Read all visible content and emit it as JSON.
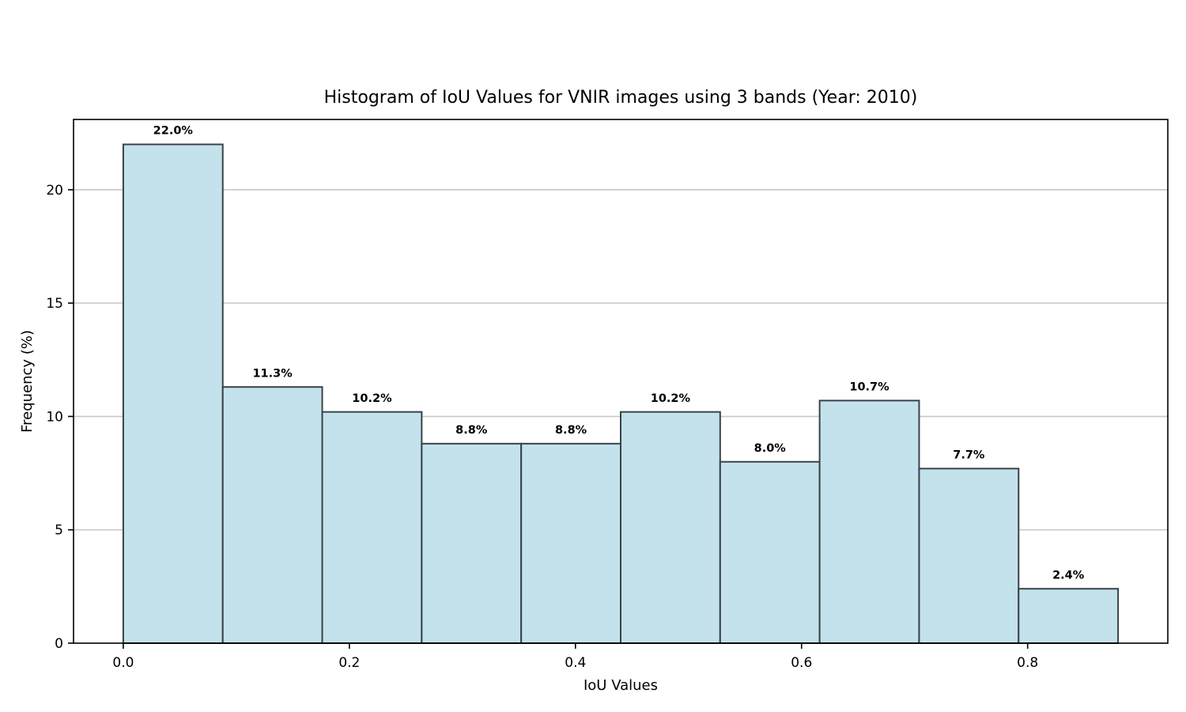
{
  "chart_data": {
    "type": "bar",
    "title": "Histogram of IoU Values for VNIR images using 3 bands (Year: 2010)",
    "xlabel": "IoU Values",
    "ylabel": "Frequency (%)",
    "bin_edges": [
      0.0,
      0.088,
      0.176,
      0.264,
      0.352,
      0.44,
      0.528,
      0.616,
      0.704,
      0.792,
      0.88
    ],
    "values": [
      22.0,
      11.3,
      10.2,
      8.8,
      8.8,
      10.2,
      8.0,
      10.7,
      7.7,
      2.4
    ],
    "data_labels": [
      "22.0%",
      "11.3%",
      "10.2%",
      "8.8%",
      "8.8%",
      "10.2%",
      "8.0%",
      "10.7%",
      "7.7%",
      "2.4%"
    ],
    "xlim": [
      -0.044,
      0.924
    ],
    "ylim": [
      0,
      23.1
    ],
    "xticks": [
      0.0,
      0.2,
      0.4,
      0.6,
      0.8
    ],
    "xtick_labels": [
      "0.0",
      "0.2",
      "0.4",
      "0.6",
      "0.8"
    ],
    "yticks": [
      0,
      5,
      10,
      15,
      20
    ],
    "ytick_labels": [
      "0",
      "5",
      "10",
      "15",
      "20"
    ],
    "grid": "y",
    "colors": {
      "bar_fill": "#c4e2eb",
      "bar_edge": "#3a4248",
      "grid": "#c8c8c8"
    }
  }
}
